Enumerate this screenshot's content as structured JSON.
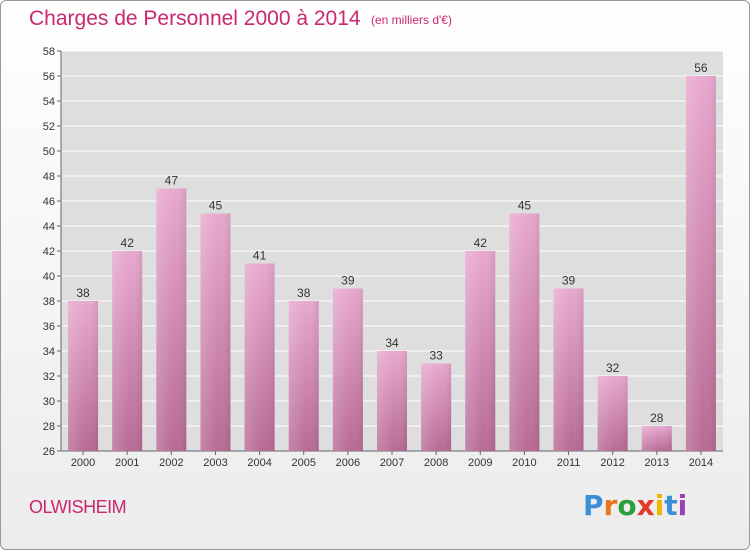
{
  "header": {
    "title": "Charges de Personnel 2000 à 2014",
    "subtitle": "(en milliers d'€)"
  },
  "footer": {
    "town": "OLWISHEIM",
    "logo": "Proxiti",
    "logo_colors": [
      "#3a8fd6",
      "#e8741c",
      "#2e9e3c",
      "#e23a2a",
      "#f0b400",
      "#3a8fd6",
      "#9b3fb5"
    ]
  },
  "chart_data": {
    "type": "bar",
    "categories": [
      "2000",
      "2001",
      "2002",
      "2003",
      "2004",
      "2005",
      "2006",
      "2007",
      "2008",
      "2009",
      "2010",
      "2011",
      "2012",
      "2013",
      "2014"
    ],
    "values": [
      38,
      42,
      47,
      45,
      41,
      38,
      39,
      34,
      33,
      42,
      45,
      39,
      32,
      28,
      56
    ],
    "ylim": [
      26,
      58
    ],
    "yticks": [
      26,
      28,
      30,
      32,
      34,
      36,
      38,
      40,
      42,
      44,
      46,
      48,
      50,
      52,
      54,
      56,
      58
    ],
    "grid": true,
    "bar_color_top": "#e8a8cf",
    "bar_color_bottom": "#b76a95"
  }
}
